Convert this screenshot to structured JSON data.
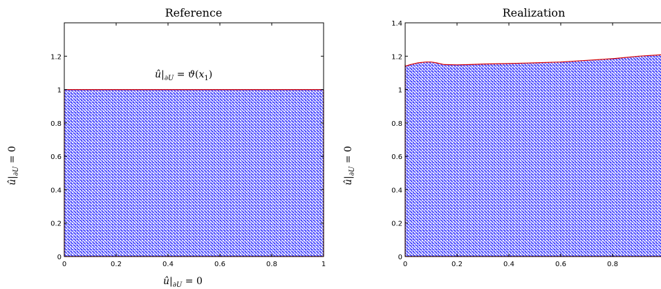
{
  "chart_data": [
    {
      "type": "area",
      "title": "Reference",
      "xlim": [
        0,
        1
      ],
      "ylim": [
        0,
        1.4
      ],
      "xticks": [
        "0",
        "0.2",
        "0.4",
        "0.6",
        "0.8",
        "1"
      ],
      "yticks": [
        "0",
        "0.2",
        "0.4",
        "0.6",
        "0.8",
        "1",
        "1.2"
      ],
      "ylabel": "û|∂U = 0",
      "xlabel": "û|∂U = 0",
      "annotation": "û|∂U = ϑ(x₁)",
      "top_boundary": {
        "x": [
          0,
          1
        ],
        "y": [
          1,
          1
        ]
      },
      "grid": false,
      "fill_color": "#1a1aff",
      "boundary_color": "#d40000"
    },
    {
      "type": "area",
      "title": "Realization",
      "xlim": [
        0,
        1
      ],
      "ylim": [
        0,
        1.4
      ],
      "xticks": [
        "0",
        "0.2",
        "0.4",
        "0.6",
        "0.8"
      ],
      "yticks": [
        "0",
        "0.2",
        "0.4",
        "0.6",
        "0.8",
        "1",
        "1.2",
        "1.4"
      ],
      "ylabel": "û|∂U = 0",
      "top_boundary": {
        "x": [
          0,
          0.02,
          0.05,
          0.08,
          0.1,
          0.12,
          0.15,
          0.2,
          0.25,
          0.3,
          0.4,
          0.5,
          0.6,
          0.7,
          0.8,
          0.9,
          1.0
        ],
        "y": [
          1.14,
          1.15,
          1.16,
          1.165,
          1.165,
          1.16,
          1.15,
          1.148,
          1.15,
          1.153,
          1.156,
          1.16,
          1.165,
          1.175,
          1.185,
          1.2,
          1.21
        ]
      },
      "grid": false,
      "fill_color": "#1a1aff",
      "boundary_color": "#d40000"
    }
  ]
}
